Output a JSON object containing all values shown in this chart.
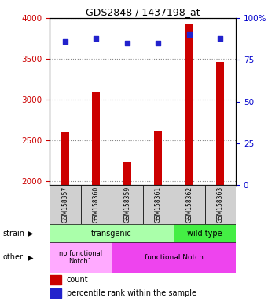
{
  "title": "GDS2848 / 1437198_at",
  "samples": [
    "GSM158357",
    "GSM158360",
    "GSM158359",
    "GSM158361",
    "GSM158362",
    "GSM158363"
  ],
  "counts": [
    2600,
    3100,
    2230,
    2620,
    3920,
    3460
  ],
  "percentile_ranks": [
    86,
    88,
    85,
    85,
    90,
    88
  ],
  "ylim_left": [
    1950,
    4000
  ],
  "ylim_right": [
    0,
    100
  ],
  "yticks_left": [
    2000,
    2500,
    3000,
    3500,
    4000
  ],
  "yticks_right": [
    0,
    25,
    50,
    75,
    100
  ],
  "bar_color": "#cc0000",
  "dot_color": "#2222cc",
  "bar_bottom": 1950,
  "strain_transgenic_text": "transgenic",
  "strain_wildtype_text": "wild type",
  "strain_transgenic_color": "#aaffaa",
  "strain_wildtype_color": "#44ee44",
  "other_nofunc_text": "no functional\nNotch1",
  "other_func_text": "functional Notch",
  "other_nofunc_color": "#ffaaff",
  "other_func_color": "#ee44ee",
  "strain_row_label": "strain",
  "other_row_label": "other",
  "legend_count_label": "count",
  "legend_pct_label": "percentile rank within the sample",
  "left_tick_color": "#cc0000",
  "right_tick_color": "#0000cc",
  "grid_style": "dotted",
  "grid_color": "#888888",
  "bar_width": 0.25
}
